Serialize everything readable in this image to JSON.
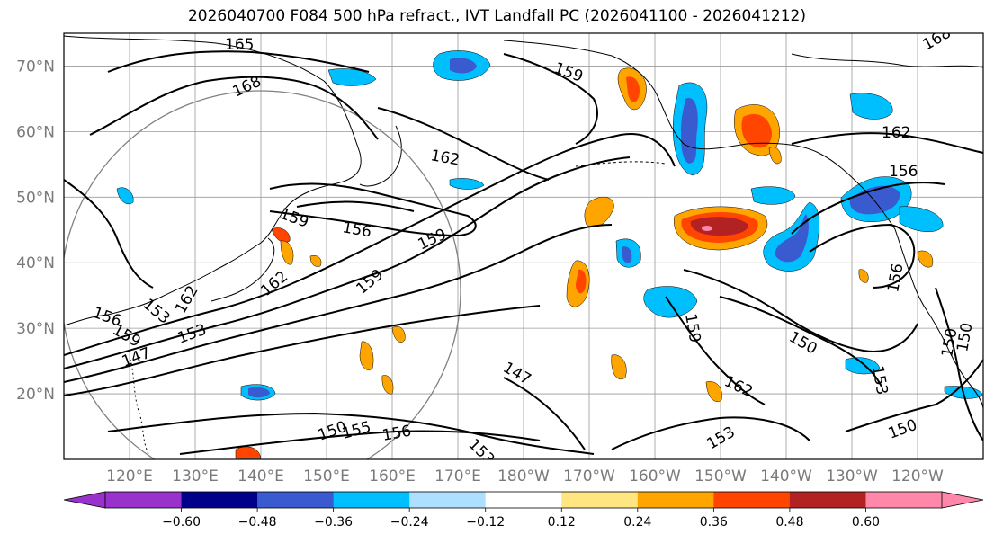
{
  "title": "2026040700 F084 500 hPa refract., IVT Landfall PC (2026041100 - 2026041212)",
  "map": {
    "projection": "PlateCarree",
    "lon_range": [
      110,
      250
    ],
    "lat_range": [
      10,
      75
    ],
    "lat_ticks": [
      "20°N",
      "30°N",
      "40°N",
      "50°N",
      "60°N",
      "70°N"
    ],
    "lon_ticks": [
      "120°E",
      "130°E",
      "140°E",
      "150°E",
      "160°E",
      "170°E",
      "180°W",
      "170°W",
      "160°W",
      "150°W",
      "140°W",
      "130°W",
      "120°W"
    ],
    "grid": true,
    "circle_outline": true
  },
  "contours": {
    "variable": "500 hPa refractivity",
    "labels": [
      "165",
      "168",
      "159",
      "162",
      "156",
      "159",
      "156",
      "159",
      "162",
      "150",
      "153",
      "156",
      "159",
      "153",
      "147",
      "147",
      "159",
      "150",
      "162",
      "153",
      "150",
      "153",
      "150",
      "162",
      "156",
      "156",
      "153",
      "150",
      "155",
      "159",
      "162",
      "168"
    ]
  },
  "colorbar": {
    "colors": [
      "#9932CC",
      "#00008B",
      "#3A5AD0",
      "#00BFFF",
      "#ADDFFF",
      "#FFFFFF",
      "#FFE680",
      "#FFA500",
      "#FF4500",
      "#B22222",
      "#FF88AA"
    ],
    "boundaries": [
      "-0.60",
      "−0.48",
      "−0.36",
      "−0.24",
      "−0.12",
      "0.12",
      "0.24",
      "0.36",
      "0.48",
      "0.60"
    ],
    "tick_labels": [
      "−0.60",
      "−0.48",
      "−0.36",
      "−0.24",
      "−0.12",
      "0.12",
      "0.24",
      "0.36",
      "0.48",
      "0.60"
    ],
    "extend": "both"
  }
}
